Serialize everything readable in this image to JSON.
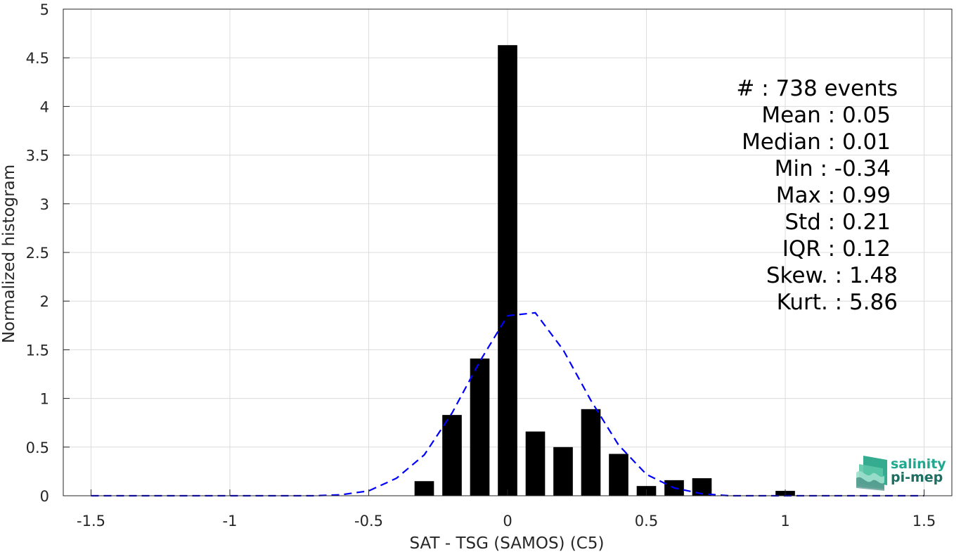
{
  "chart_data": {
    "type": "bar",
    "xlabel": "SAT - TSG (SAMOS) (C5)",
    "ylabel": "Normalized histogram",
    "xlim": [
      -1.6,
      1.6
    ],
    "ylim": [
      0,
      5
    ],
    "xticks": [
      -1.5,
      -1,
      -0.5,
      0,
      0.5,
      1,
      1.5
    ],
    "xtick_labels": [
      "-1.5",
      "-1",
      "-0.5",
      "0",
      "0.5",
      "1",
      "1.5"
    ],
    "yticks": [
      0,
      0.5,
      1,
      1.5,
      2,
      2.5,
      3,
      3.5,
      4,
      4.5,
      5
    ],
    "ytick_labels": [
      "0",
      "0.5",
      "1",
      "1.5",
      "2",
      "2.5",
      "3",
      "3.5",
      "4",
      "4.5",
      "5"
    ],
    "grid": true,
    "bin_width": 0.1,
    "bar_width_fraction": 0.7,
    "bars": [
      {
        "x": -0.3,
        "y": 0.15
      },
      {
        "x": -0.2,
        "y": 0.83
      },
      {
        "x": -0.1,
        "y": 1.41
      },
      {
        "x": 0.0,
        "y": 4.63
      },
      {
        "x": 0.1,
        "y": 0.66
      },
      {
        "x": 0.2,
        "y": 0.5
      },
      {
        "x": 0.3,
        "y": 0.89
      },
      {
        "x": 0.4,
        "y": 0.43
      },
      {
        "x": 0.5,
        "y": 0.1
      },
      {
        "x": 0.6,
        "y": 0.16
      },
      {
        "x": 0.7,
        "y": 0.18
      },
      {
        "x": 1.0,
        "y": 0.05
      }
    ],
    "fit_curve": {
      "style": "dashed",
      "color": "#0000ff",
      "x": [
        -1.5,
        -1.4,
        -1.3,
        -1.2,
        -1.1,
        -1.0,
        -0.9,
        -0.8,
        -0.7,
        -0.6,
        -0.5,
        -0.4,
        -0.3,
        -0.2,
        -0.1,
        0.0,
        0.1,
        0.2,
        0.3,
        0.4,
        0.5,
        0.6,
        0.7,
        0.8,
        0.9,
        1.0,
        1.1,
        1.2,
        1.3,
        1.4,
        1.5
      ],
      "y": [
        0,
        0,
        0,
        0,
        0,
        0,
        0,
        0,
        0,
        0.01,
        0.05,
        0.18,
        0.42,
        0.85,
        1.38,
        1.85,
        1.88,
        1.5,
        0.98,
        0.52,
        0.22,
        0.08,
        0.02,
        0,
        0,
        0,
        0,
        0,
        0,
        0,
        0
      ]
    },
    "bar_color": "#000000"
  },
  "stats": [
    {
      "label": "#  : 738 events"
    },
    {
      "label": "Mean : 0.05"
    },
    {
      "label": "Median : 0.01"
    },
    {
      "label": "Min : -0.34"
    },
    {
      "label": "Max : 0.99"
    },
    {
      "label": "Std : 0.21"
    },
    {
      "label": "IQR : 0.12"
    },
    {
      "label": "Skew. : 1.48"
    },
    {
      "label": "Kurt. : 5.86"
    }
  ],
  "logo": {
    "line1": "salinity",
    "line2": "pi-mep",
    "color1": "#1fa88e",
    "color2": "#1d6e62"
  }
}
